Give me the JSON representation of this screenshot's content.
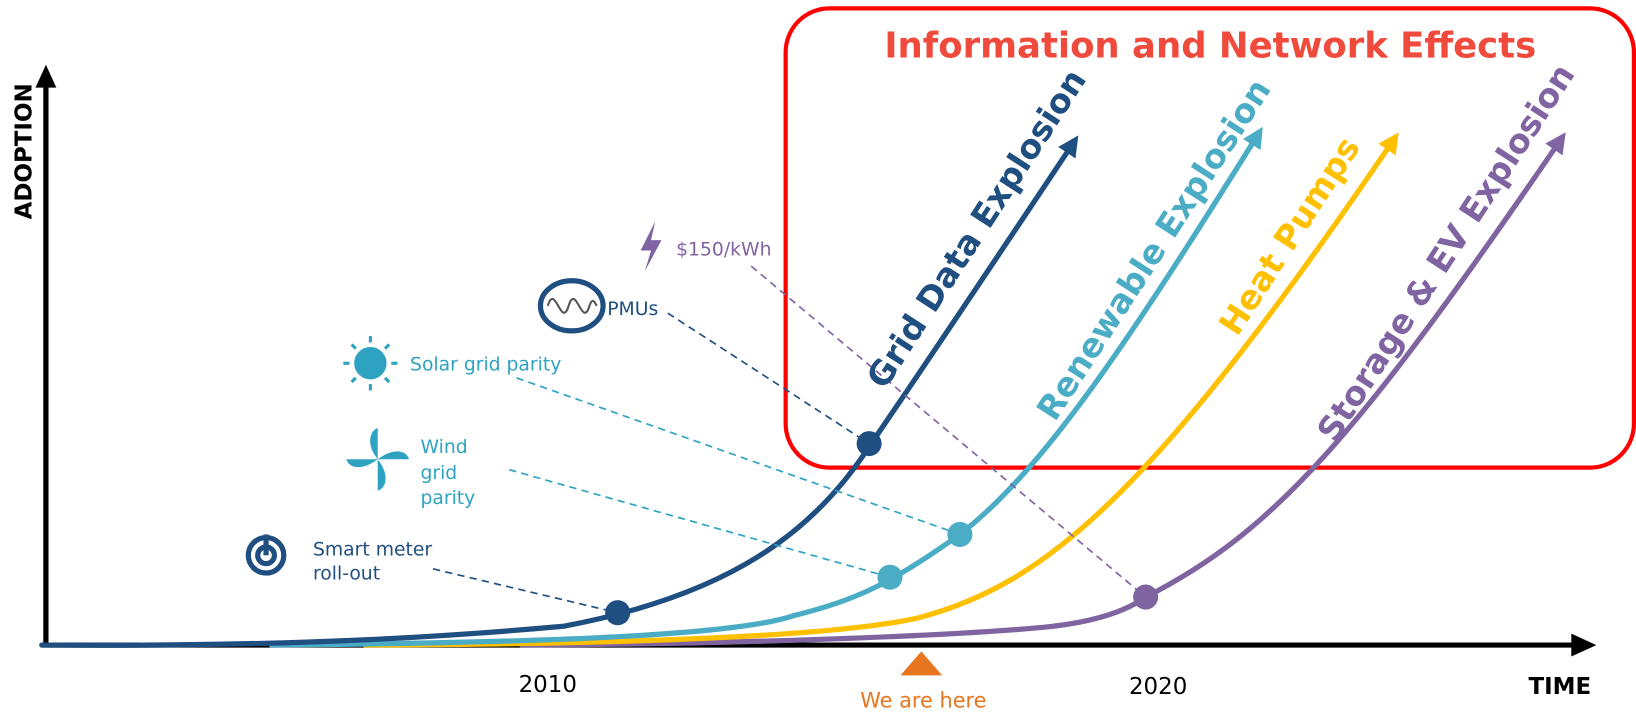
{
  "axes": {
    "y_label": "ADOPTION",
    "x_label": "TIME",
    "ticks": [
      "2010",
      "2020"
    ]
  },
  "marker": "We are here",
  "box_title": "Information and Network Effects",
  "curves": [
    "Grid Data Explosion",
    "Renewable Explosion",
    "Heat Pumps",
    "Storage & EV Explosion"
  ],
  "milestones": [
    {
      "lines": [
        "Smart meter",
        "roll-out"
      ]
    },
    {
      "lines": [
        "Wind",
        "grid",
        "parity"
      ]
    },
    {
      "lines": [
        "Solar grid parity"
      ]
    },
    {
      "lines": [
        "PMUs"
      ]
    },
    {
      "lines": [
        "$150/kWh"
      ]
    }
  ]
}
